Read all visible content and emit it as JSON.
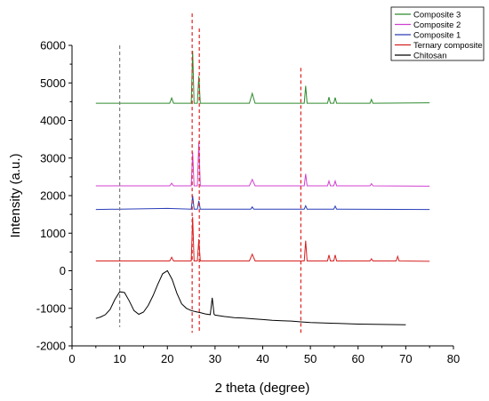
{
  "chart_data": {
    "type": "line",
    "xlabel": "2 theta (degree)",
    "ylabel": "Intensity (a.u.)",
    "xlim": [
      0,
      80
    ],
    "ylim": [
      -2000,
      6000
    ],
    "x_ticks": [
      0,
      10,
      20,
      30,
      40,
      50,
      60,
      70,
      80
    ],
    "y_ticks": [
      -2000,
      -1000,
      0,
      1000,
      2000,
      3000,
      4000,
      5000,
      6000
    ],
    "grid": false,
    "legend_position": "top-right",
    "series": [
      {
        "name": "Composite 3",
        "color": "#2e8b2e",
        "x": [
          5,
          20.5,
          20.9,
          21.3,
          25.0,
          25.3,
          25.6,
          26.3,
          26.6,
          26.9,
          37.2,
          37.8,
          38.4,
          48.7,
          49.0,
          49.3,
          53.6,
          53.9,
          54.2,
          54.9,
          55.2,
          55.5,
          62.5,
          62.8,
          63.1,
          75
        ],
        "values": [
          4460,
          4460,
          4600,
          4460,
          4460,
          5850,
          4460,
          4460,
          5180,
          4460,
          4460,
          4720,
          4460,
          4460,
          4920,
          4460,
          4460,
          4620,
          4460,
          4460,
          4610,
          4460,
          4460,
          4560,
          4460,
          4470
        ]
      },
      {
        "name": "Composite 2",
        "color": "#d040d0",
        "x": [
          5,
          20.5,
          20.9,
          21.3,
          25.0,
          25.3,
          25.6,
          26.3,
          26.6,
          26.9,
          37.2,
          37.8,
          38.4,
          48.7,
          49.0,
          49.3,
          53.6,
          53.9,
          54.2,
          54.9,
          55.2,
          55.5,
          62.5,
          62.8,
          63.1,
          75
        ],
        "values": [
          2260,
          2260,
          2330,
          2260,
          2260,
          3150,
          2260,
          2260,
          3430,
          2260,
          2260,
          2430,
          2260,
          2260,
          2580,
          2260,
          2260,
          2390,
          2260,
          2260,
          2390,
          2260,
          2260,
          2320,
          2260,
          2250
        ]
      },
      {
        "name": "Composite 1",
        "color": "#2a3fb8",
        "x": [
          5,
          20,
          25.0,
          25.3,
          25.6,
          26.3,
          26.6,
          26.9,
          37.5,
          37.8,
          38.1,
          48.7,
          49.0,
          49.3,
          54.9,
          55.2,
          55.5,
          75
        ],
        "values": [
          1630,
          1660,
          1640,
          2000,
          1640,
          1640,
          1860,
          1640,
          1640,
          1700,
          1640,
          1640,
          1730,
          1640,
          1640,
          1720,
          1640,
          1630
        ]
      },
      {
        "name": "Ternary composite",
        "color": "#d62020",
        "x": [
          5,
          20.5,
          20.9,
          21.3,
          25.0,
          25.3,
          25.6,
          26.3,
          26.6,
          26.9,
          37.2,
          37.8,
          38.4,
          48.7,
          49.0,
          49.3,
          53.6,
          53.9,
          54.2,
          54.9,
          55.2,
          55.5,
          62.5,
          62.8,
          63.1,
          68.0,
          68.3,
          68.6,
          75
        ],
        "values": [
          260,
          260,
          360,
          260,
          260,
          1430,
          260,
          260,
          840,
          260,
          260,
          440,
          260,
          260,
          800,
          260,
          260,
          420,
          260,
          260,
          420,
          260,
          260,
          320,
          260,
          260,
          380,
          260,
          250
        ]
      },
      {
        "name": "Chitosan",
        "color": "#000000",
        "x": [
          5,
          6,
          7,
          8,
          9,
          10,
          11,
          12,
          13,
          14,
          15,
          16,
          17,
          18,
          19,
          20,
          21,
          22,
          23,
          24,
          25,
          26,
          27,
          28,
          29,
          29.4,
          29.8,
          30,
          32,
          34,
          36,
          38,
          40,
          42,
          44,
          46,
          48,
          50,
          55,
          60,
          65,
          70
        ],
        "values": [
          -1270,
          -1230,
          -1170,
          -1030,
          -760,
          -560,
          -580,
          -800,
          -1060,
          -1160,
          -1100,
          -920,
          -660,
          -360,
          -80,
          0,
          -230,
          -600,
          -880,
          -1000,
          -1060,
          -1090,
          -1120,
          -1150,
          -1170,
          -720,
          -1160,
          -1180,
          -1220,
          -1250,
          -1260,
          -1280,
          -1300,
          -1320,
          -1330,
          -1340,
          -1360,
          -1380,
          -1400,
          -1420,
          -1430,
          -1440
        ]
      }
    ],
    "reference_lines": [
      {
        "x": 10,
        "color": "#808080",
        "y_range": [
          -1500,
          6000
        ]
      },
      {
        "x": 25.2,
        "color": "#e02020",
        "y_range": [
          -1650,
          6850
        ]
      },
      {
        "x": 26.7,
        "color": "#e02020",
        "y_range": [
          -1650,
          6450
        ]
      },
      {
        "x": 48.0,
        "color": "#e02020",
        "y_range": [
          -1650,
          5400
        ]
      }
    ]
  }
}
